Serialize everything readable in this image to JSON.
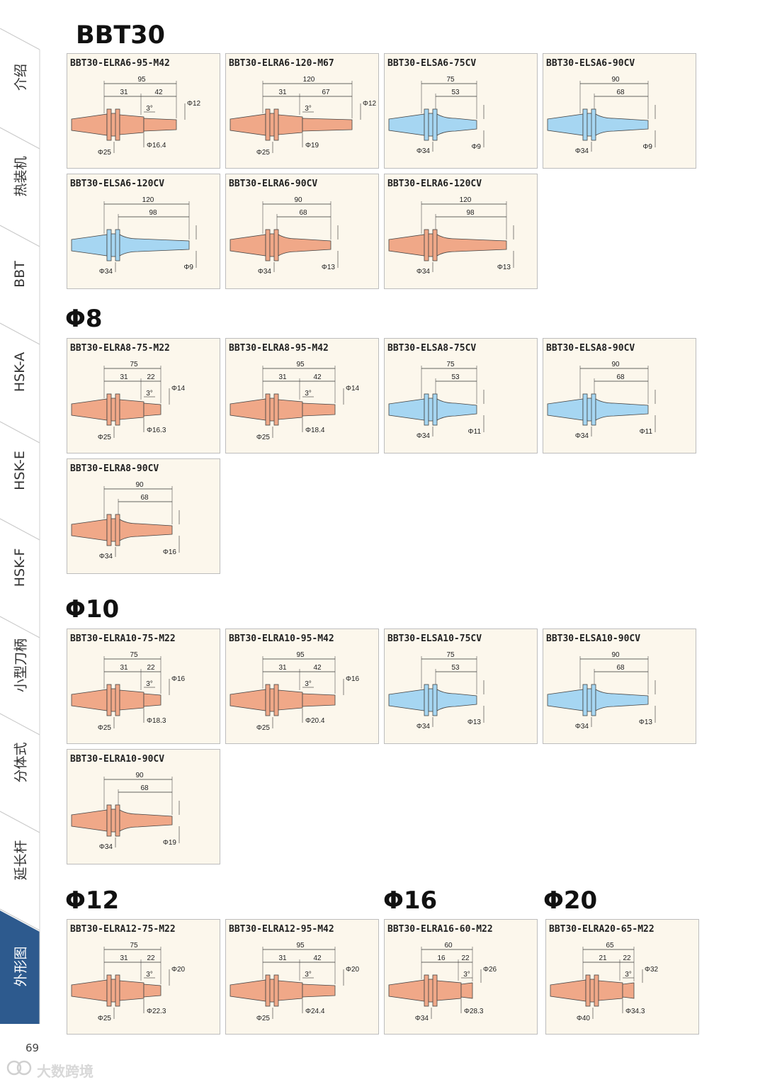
{
  "sidebar": {
    "tabs": [
      {
        "label": "介绍",
        "active": false
      },
      {
        "label": "热装机",
        "active": false
      },
      {
        "label": "BBT",
        "active": false
      },
      {
        "label": "HSK-A",
        "active": false
      },
      {
        "label": "HSK-E",
        "active": false
      },
      {
        "label": "HSK-F",
        "active": false
      },
      {
        "label": "小型刀柄",
        "active": false
      },
      {
        "label": "分体式",
        "active": false
      },
      {
        "label": "延长杆",
        "active": false
      },
      {
        "label": "外形图",
        "active": true
      }
    ],
    "active_color": "#2d5a8e"
  },
  "page": {
    "title": "BBT30",
    "page_number": "69",
    "watermark": "大数跨境"
  },
  "colors": {
    "ra": "#f0a888",
    "sa": "#a6d6f2",
    "outline": "#444444"
  },
  "sections": [
    {
      "title": "BBT30",
      "items": [
        {
          "label": "BBT30-ELRA6-95-M42",
          "variant": "ra",
          "dims": {
            "total": "95",
            "d1": "31",
            "d2": "42",
            "angle": "3°",
            "tip": "Φ12",
            "flange": "Φ25",
            "body": "Φ16.4"
          }
        },
        {
          "label": "BBT30-ELRA6-120-M67",
          "variant": "ra",
          "dims": {
            "total": "120",
            "d1": "31",
            "d2": "67",
            "angle": "3°",
            "tip": "Φ12",
            "flange": "Φ25",
            "body": "Φ19"
          }
        },
        {
          "label": "BBT30-ELSA6-75CV",
          "variant": "sa",
          "dims": {
            "total": "75",
            "d1": "53",
            "flange": "Φ34",
            "tip": "Φ9"
          }
        },
        {
          "label": "BBT30-ELSA6-90CV",
          "variant": "sa",
          "dims": {
            "total": "90",
            "d1": "68",
            "flange": "Φ34",
            "tip": "Φ9"
          }
        },
        {
          "label": "BBT30-ELSA6-120CV",
          "variant": "sa",
          "dims": {
            "total": "120",
            "d1": "98",
            "flange": "Φ34",
            "tip": "Φ9"
          }
        },
        {
          "label": "BBT30-ELRA6-90CV",
          "variant": "ra-cv",
          "dims": {
            "total": "90",
            "d1": "68",
            "flange": "Φ34",
            "tip": "Φ13"
          }
        },
        {
          "label": "BBT30-ELRA6-120CV",
          "variant": "ra-cv",
          "dims": {
            "total": "120",
            "d1": "98",
            "flange": "Φ34",
            "tip": "Φ13"
          }
        }
      ]
    },
    {
      "title": "Φ8",
      "items": [
        {
          "label": "BBT30-ELRA8-75-M22",
          "variant": "ra",
          "dims": {
            "total": "75",
            "d1": "31",
            "d2": "22",
            "angle": "3°",
            "tip": "Φ14",
            "flange": "Φ25",
            "body": "Φ16.3"
          }
        },
        {
          "label": "BBT30-ELRA8-95-M42",
          "variant": "ra",
          "dims": {
            "total": "95",
            "d1": "31",
            "d2": "42",
            "angle": "3°",
            "tip": "Φ14",
            "flange": "Φ25",
            "body": "Φ18.4"
          }
        },
        {
          "label": "BBT30-ELSA8-75CV",
          "variant": "sa",
          "dims": {
            "total": "75",
            "d1": "53",
            "flange": "Φ34",
            "tip": "Φ11"
          }
        },
        {
          "label": "BBT30-ELSA8-90CV",
          "variant": "sa",
          "dims": {
            "total": "90",
            "d1": "68",
            "flange": "Φ34",
            "tip": "Φ11"
          }
        },
        {
          "label": "BBT30-ELRA8-90CV",
          "variant": "ra-cv",
          "dims": {
            "total": "90",
            "d1": "68",
            "flange": "Φ34",
            "tip": "Φ16"
          }
        }
      ]
    },
    {
      "title": "Φ10",
      "items": [
        {
          "label": "BBT30-ELRA10-75-M22",
          "variant": "ra",
          "dims": {
            "total": "75",
            "d1": "31",
            "d2": "22",
            "angle": "3°",
            "tip": "Φ16",
            "flange": "Φ25",
            "body": "Φ18.3"
          }
        },
        {
          "label": "BBT30-ELRA10-95-M42",
          "variant": "ra",
          "dims": {
            "total": "95",
            "d1": "31",
            "d2": "42",
            "angle": "3°",
            "tip": "Φ16",
            "flange": "Φ25",
            "body": "Φ20.4"
          }
        },
        {
          "label": "BBT30-ELSA10-75CV",
          "variant": "sa",
          "dims": {
            "total": "75",
            "d1": "53",
            "flange": "Φ34",
            "tip": "Φ13"
          }
        },
        {
          "label": "BBT30-ELSA10-90CV",
          "variant": "sa",
          "dims": {
            "total": "90",
            "d1": "68",
            "flange": "Φ34",
            "tip": "Φ13"
          }
        },
        {
          "label": "BBT30-ELRA10-90CV",
          "variant": "ra-cv",
          "dims": {
            "total": "90",
            "d1": "68",
            "flange": "Φ34",
            "tip": "Φ19"
          }
        }
      ]
    },
    {
      "title": "Φ12",
      "items": [
        {
          "label": "BBT30-ELRA12-75-M22",
          "variant": "ra",
          "dims": {
            "total": "75",
            "d1": "31",
            "d2": "22",
            "angle": "3°",
            "tip": "Φ20",
            "flange": "Φ25",
            "body": "Φ22.3"
          }
        },
        {
          "label": "BBT30-ELRA12-95-M42",
          "variant": "ra",
          "dims": {
            "total": "95",
            "d1": "31",
            "d2": "42",
            "angle": "3°",
            "tip": "Φ20",
            "flange": "Φ25",
            "body": "Φ24.4"
          }
        }
      ]
    },
    {
      "title": "Φ16",
      "items": [
        {
          "label": "BBT30-ELRA16-60-M22",
          "variant": "ra",
          "dims": {
            "total": "60",
            "d1": "16",
            "d2": "22",
            "angle": "3°",
            "tip": "Φ26",
            "flange": "Φ34",
            "body": "Φ28.3"
          }
        }
      ]
    },
    {
      "title": "Φ20",
      "items": [
        {
          "label": "BBT30-ELRA20-65-M22",
          "variant": "ra",
          "dims": {
            "total": "65",
            "d1": "21",
            "d2": "22",
            "angle": "3°",
            "tip": "Φ32",
            "flange": "Φ40",
            "body": "Φ34.3"
          }
        }
      ]
    }
  ]
}
